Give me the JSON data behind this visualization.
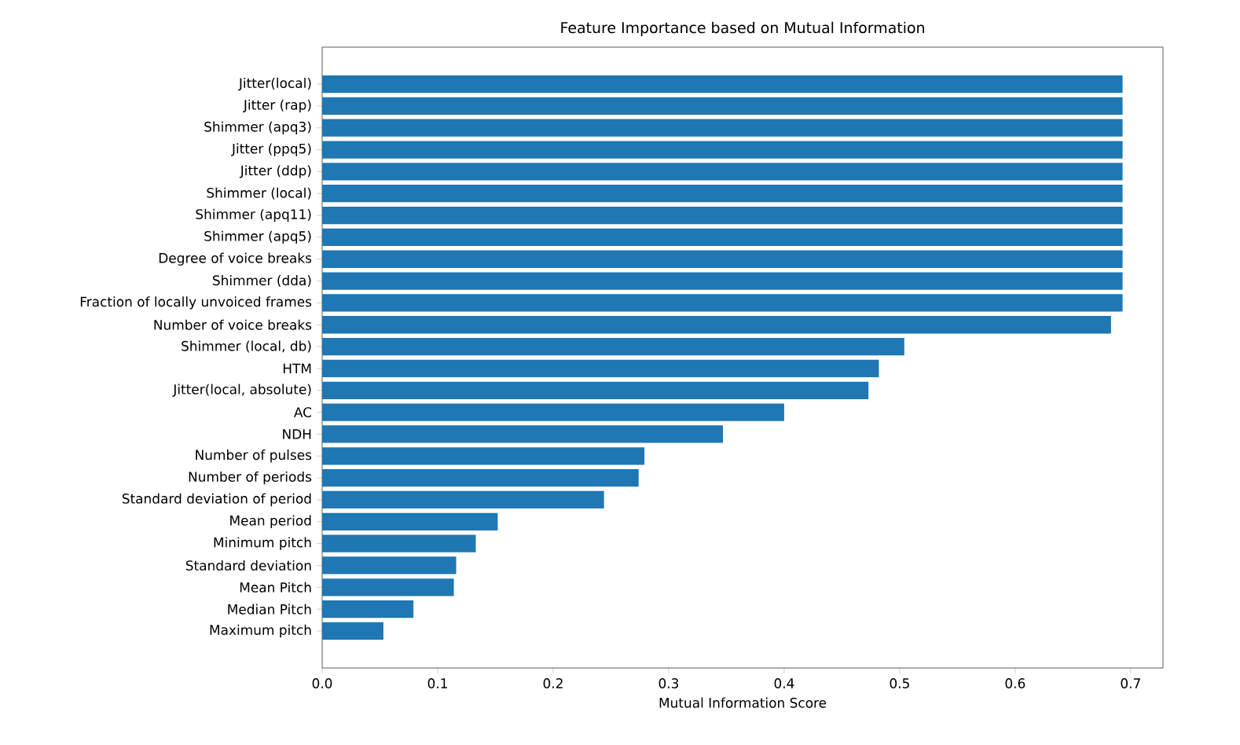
{
  "chart_data": {
    "type": "bar",
    "orientation": "horizontal",
    "title": "Feature Importance based on Mutual Information",
    "xlabel": "Mutual Information Score",
    "categories": [
      "Jitter(local)",
      "Jitter (rap)",
      "Shimmer (apq3)",
      "Jitter (ppq5)",
      "Jitter (ddp)",
      "Shimmer (local)",
      "Shimmer (apq11)",
      "Shimmer (apq5)",
      "Degree of voice breaks",
      "Shimmer (dda)",
      "Fraction of locally unvoiced frames",
      "Number of voice breaks",
      "Shimmer (local, db)",
      "HTM",
      "Jitter(local, absolute)",
      "AC",
      "NDH",
      "Number of pulses",
      "Number of periods",
      "Standard deviation of period",
      "Mean period",
      "Minimum pitch",
      "Standard deviation",
      "Mean Pitch",
      "Median Pitch",
      "Maximum pitch"
    ],
    "values": [
      0.693,
      0.693,
      0.693,
      0.693,
      0.693,
      0.693,
      0.693,
      0.693,
      0.693,
      0.693,
      0.693,
      0.683,
      0.504,
      0.482,
      0.473,
      0.4,
      0.347,
      0.279,
      0.274,
      0.244,
      0.152,
      0.133,
      0.116,
      0.114,
      0.079,
      0.053
    ],
    "color": "#1f77b4",
    "xlim": [
      0,
      0.728
    ],
    "xticks": [
      {
        "value": 0,
        "label": "0.0"
      },
      0.1,
      0.2,
      0.3,
      0.4,
      0.5,
      0.6,
      0.7
    ]
  }
}
